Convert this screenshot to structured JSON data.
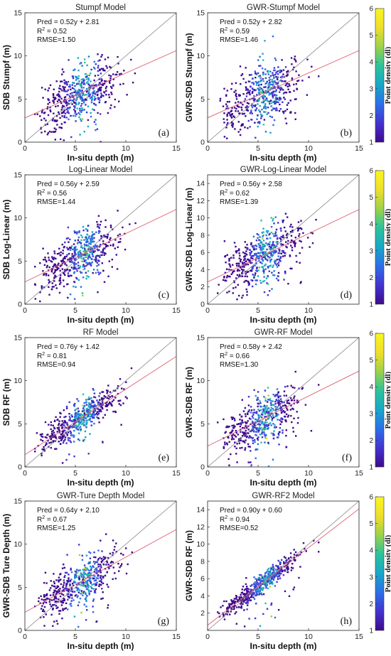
{
  "colors": {
    "identity_line": "#888888",
    "fit_line": "#e06070",
    "colormap": [
      "#3e0a8c",
      "#4433d0",
      "#2c6fe8",
      "#17a8c8",
      "#2cc39a",
      "#9cd24a",
      "#f0de2c",
      "#f9f621"
    ]
  },
  "colorbar": {
    "label": "Point density (dl)",
    "min": 1,
    "max": 6,
    "ticks": [
      1,
      2,
      3,
      4,
      5,
      6
    ]
  },
  "chart_data": [
    {
      "type": "scatter",
      "title": "Stumpf Model",
      "xlabel": "In-situ depth (m)",
      "ylabel": "SDB Stumpf (m)",
      "xlim": [
        0,
        15
      ],
      "ylim": [
        0,
        15
      ],
      "xticks": [
        0,
        5,
        10,
        15
      ],
      "yticks": [
        0,
        5,
        10,
        15
      ],
      "panel_label": "(a)",
      "fit": {
        "slope": 0.52,
        "intercept": 2.81
      },
      "annotation": {
        "equation": "Pred = 0.52y + 2.81",
        "r2_prefix": "R",
        "r2_sup": "2",
        "r2_value": " = 0.52",
        "rmse": "RMSE=1.50"
      },
      "has_colorbar": false
    },
    {
      "type": "scatter",
      "title": "GWR-Stumpf Model",
      "xlabel": "In-situ depth (m)",
      "ylabel": "GWR-SDB Stumpf (m)",
      "xlim": [
        0,
        15
      ],
      "ylim": [
        0,
        15
      ],
      "xticks": [
        0,
        5,
        10,
        15
      ],
      "yticks": [
        0,
        5,
        10,
        15
      ],
      "panel_label": "(b)",
      "fit": {
        "slope": 0.52,
        "intercept": 2.82
      },
      "annotation": {
        "equation": "Pred = 0.52y + 2.82",
        "r2_prefix": "R",
        "r2_sup": "2",
        "r2_value": " = 0.59",
        "rmse": "RMSE=1.46"
      },
      "has_colorbar": true
    },
    {
      "type": "scatter",
      "title": "Log-Linear Model",
      "xlabel": "In-situ depth (m)",
      "ylabel": "SDB Log-Linear (m)",
      "xlim": [
        0,
        15
      ],
      "ylim": [
        0,
        15
      ],
      "xticks": [
        0,
        5,
        10,
        15
      ],
      "yticks": [
        0,
        5,
        10,
        15
      ],
      "panel_label": "(c)",
      "fit": {
        "slope": 0.56,
        "intercept": 2.59
      },
      "annotation": {
        "equation": "Pred = 0.56y + 2.59",
        "r2_prefix": "R",
        "r2_sup": "2",
        "r2_value": " = 0.56",
        "rmse": "RMSE=1.44"
      },
      "has_colorbar": false
    },
    {
      "type": "scatter",
      "title": "GWR-Log-Linear Model",
      "xlabel": "In-situ depth (m)",
      "ylabel": "GWR-SDB Log-Linear (m)",
      "xlim": [
        0,
        15
      ],
      "ylim": [
        0,
        15
      ],
      "xticks": [
        0,
        5,
        10
      ],
      "yticks": [
        0,
        2,
        4,
        6,
        8,
        10,
        12,
        14
      ],
      "panel_label": "(d)",
      "fit": {
        "slope": 0.56,
        "intercept": 2.58
      },
      "annotation": {
        "equation": "Pred = 0.56y + 2.58",
        "r2_prefix": "R",
        "r2_sup": "2",
        "r2_value": " = 0.62",
        "rmse": "RMSE=1.39"
      },
      "has_colorbar": true
    },
    {
      "type": "scatter",
      "title": "RF Model",
      "xlabel": "In-situ depth (m)",
      "ylabel": "SDB RF (m)",
      "xlim": [
        0,
        15
      ],
      "ylim": [
        0,
        15
      ],
      "xticks": [
        0,
        5,
        10,
        15
      ],
      "yticks": [
        0,
        5,
        10,
        15
      ],
      "panel_label": "(e)",
      "fit": {
        "slope": 0.76,
        "intercept": 1.42
      },
      "annotation": {
        "equation": "Pred = 0.76y + 1.42",
        "r2_prefix": "R",
        "r2_sup": "2",
        "r2_value": " = 0.81",
        "rmse": "RMSE=0.94"
      },
      "has_colorbar": false
    },
    {
      "type": "scatter",
      "title": "GWR-RF Model",
      "xlabel": "In-situ depth (m)",
      "ylabel": "GWR-SDB RF (m)",
      "xlim": [
        0,
        15
      ],
      "ylim": [
        0,
        15
      ],
      "xticks": [
        0,
        5,
        10,
        15
      ],
      "yticks": [
        0,
        5,
        10,
        15
      ],
      "panel_label": "(f)",
      "fit": {
        "slope": 0.58,
        "intercept": 2.42
      },
      "annotation": {
        "equation": "Pred = 0.58y + 2.42",
        "r2_prefix": "R",
        "r2_sup": "2",
        "r2_value": " = 0.66",
        "rmse": "RMSE=1.30"
      },
      "has_colorbar": true
    },
    {
      "type": "scatter",
      "title": "GWR-Ture Depth Model",
      "xlabel": "In-situ depth (m)",
      "ylabel": "GWR-SDB Ture Depth (m)",
      "xlim": [
        0,
        15
      ],
      "ylim": [
        0,
        15
      ],
      "xticks": [
        0,
        5,
        10,
        15
      ],
      "yticks": [
        0,
        5,
        10,
        15
      ],
      "panel_label": "(g)",
      "fit": {
        "slope": 0.64,
        "intercept": 2.1
      },
      "annotation": {
        "equation": "Pred = 0.64y + 2.10",
        "r2_prefix": "R",
        "r2_sup": "2",
        "r2_value": " = 0.67",
        "rmse": "RMSE=1.25"
      },
      "has_colorbar": false
    },
    {
      "type": "scatter",
      "title": "GWR-RF2 Model",
      "xlabel": "In-situ depth (m)",
      "ylabel": "GWR-SDB RF (m)",
      "xlim": [
        0,
        15
      ],
      "ylim": [
        0,
        15
      ],
      "xticks": [
        0,
        5,
        10,
        15
      ],
      "yticks": [
        2,
        4,
        6,
        8,
        10,
        12,
        14
      ],
      "panel_label": "(h)",
      "fit": {
        "slope": 0.9,
        "intercept": 0.6
      },
      "annotation": {
        "equation": "Pred = 0.90y + 0.60",
        "r2_prefix": "R",
        "r2_sup": "2",
        "r2_value": " = 0.94",
        "rmse": "RMSE=0.52"
      },
      "has_colorbar": true
    }
  ]
}
